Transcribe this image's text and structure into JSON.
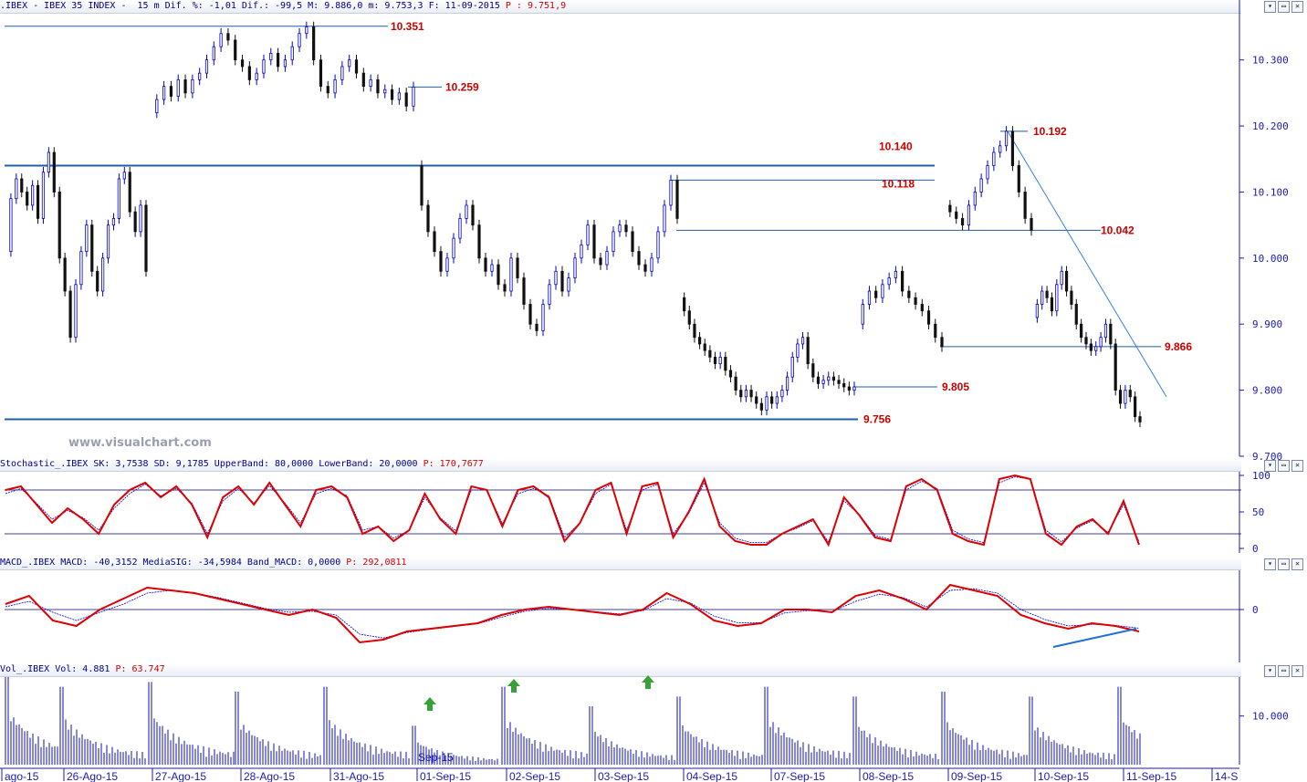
{
  "headers": {
    "main": {
      "prefix": ".IBEX - IBEX 35 INDEX -  15 m Dif. %: -1,01 Dif.: -99,5 M: 9.886,0 m: 9.753,3 F: 11-09-2015 ",
      "red": "P : 9.751,9"
    },
    "stoch": {
      "prefix": "Stochastic_.IBEX SK: 3,7538 SD: 9,1785 UpperBand: 80,0000 LowerBand: 20,0000 ",
      "red": "P: 170,7677"
    },
    "macd": {
      "prefix": "MACD_.IBEX MACD: -40,3152 MediaSIG: -34,5984 Band_MACD: 0,0000 ",
      "red": "P: 292,0811"
    },
    "vol": {
      "prefix": "Vol_.IBEX Vol: 4.881 ",
      "red": "P: 63.747"
    }
  },
  "window_buttons": [
    "▾",
    "▭",
    "✕"
  ],
  "watermark": "www.visualchart.com",
  "colors": {
    "up": "#0000cc",
    "down": "#111111",
    "axis": "#1a1ab4",
    "level": "#1f5fa8",
    "label": "#cc0000",
    "stoch": "#dd0000",
    "signal": "#0000cc",
    "arrow": "#3aa03a"
  },
  "chart_data": [
    {
      "type": "candlestick",
      "panel": "price",
      "timeframe": "15 m",
      "ylim": [
        9700,
        10370
      ],
      "y_ticks": [
        "10.300",
        "10.200",
        "10.100",
        "10.000",
        "9.900",
        "9.800",
        "9.700"
      ],
      "x_ticks": [
        "ago-15",
        "26-Ago-15",
        "27-Ago-15",
        "28-Ago-15",
        "31-Ago-15",
        "01-Sep-15",
        "02-Sep-15",
        "03-Sep-15",
        "04-Sep-15",
        "07-Sep-15",
        "08-Sep-15",
        "09-Sep-15",
        "10-Sep-15",
        "11-Sep-15",
        "14-S"
      ],
      "x_axis_overlay_label": "Sep-15",
      "levels": [
        {
          "value": 10351,
          "label": "10.351"
        },
        {
          "value": 10259,
          "label": "10.259"
        },
        {
          "value": 10192,
          "label": "10.192"
        },
        {
          "value": 10140,
          "label": "10.140"
        },
        {
          "value": 10118,
          "label": "10.118"
        },
        {
          "value": 10042,
          "label": "10.042"
        },
        {
          "value": 9866,
          "label": "9.866"
        },
        {
          "value": 9805,
          "label": "9.805"
        },
        {
          "value": 9756,
          "label": "9.756"
        }
      ],
      "trendline": {
        "from": 10192,
        "to": 9790
      },
      "series": [
        {
          "segment": "25-Ago",
          "values": [
            10010,
            10090,
            10120,
            10100,
            10080,
            10110,
            10060,
            10130,
            10160,
            10100,
            10000,
            9950,
            9880,
            9960,
            10010,
            10050,
            9980,
            9950,
            10000,
            10050,
            10060,
            10120,
            10130,
            10070,
            10040,
            10080,
            9980
          ]
        },
        {
          "segment": "27/28-Ago",
          "values": [
            10220,
            10240,
            10260,
            10245,
            10270,
            10250,
            10270,
            10280,
            10300,
            10320,
            10340,
            10330,
            10300,
            10290,
            10270,
            10280,
            10300,
            10310,
            10290,
            10300,
            10320,
            10340,
            10350,
            10300,
            10260,
            10250,
            10270,
            10290,
            10300,
            10280,
            10260,
            10270,
            10250,
            10255,
            10240,
            10250,
            10230,
            10259
          ]
        },
        {
          "segment": "01/03-Sep",
          "values": [
            10140,
            10080,
            10040,
            10010,
            9980,
            10000,
            10030,
            10060,
            10080,
            10050,
            10000,
            9980,
            9990,
            9960,
            9950,
            10000,
            9970,
            9930,
            9900,
            9890,
            9930,
            9960,
            9980,
            9950,
            9970,
            10000,
            10020,
            10050,
            10000,
            9990,
            10010,
            10040,
            10050,
            10040,
            10010,
            9990,
            9980,
            10000,
            10040,
            10080,
            10118,
            10060
          ]
        },
        {
          "segment": "04/07-Sep",
          "values": [
            9940,
            9920,
            9900,
            9880,
            9870,
            9860,
            9850,
            9840,
            9850,
            9830,
            9820,
            9800,
            9790,
            9800,
            9790,
            9780,
            9770,
            9790,
            9780,
            9790,
            9800,
            9820,
            9850,
            9870,
            9880,
            9840,
            9820,
            9810,
            9815,
            9820,
            9815,
            9810,
            9805,
            9800,
            9805
          ]
        },
        {
          "segment": "08-Sep",
          "values": [
            9900,
            9930,
            9950,
            9940,
            9960,
            9970,
            9980,
            9950,
            9940,
            9930,
            9920,
            9900,
            9880,
            9866
          ]
        },
        {
          "segment": "09-Sep",
          "values": [
            10080,
            10070,
            10060,
            10050,
            10080,
            10100,
            10120,
            10140,
            10160,
            10170,
            10192,
            10140,
            10100,
            10060,
            10042
          ]
        },
        {
          "segment": "10/11-Sep",
          "values": [
            9910,
            9930,
            9950,
            9940,
            9920,
            9960,
            9980,
            9950,
            9930,
            9900,
            9880,
            9870,
            9860,
            9866,
            9880,
            9900,
            9870,
            9800,
            9780,
            9800,
            9790,
            9760,
            9752
          ]
        }
      ]
    },
    {
      "type": "line",
      "panel": "stochastic",
      "ylim": [
        0,
        100
      ],
      "y_ticks": [
        "100",
        "50",
        "0"
      ],
      "bands": [
        20,
        80
      ],
      "series": [
        {
          "name": "SK",
          "values": [
            80,
            85,
            60,
            35,
            55,
            40,
            20,
            60,
            80,
            90,
            70,
            85,
            60,
            15,
            70,
            85,
            60,
            90,
            60,
            30,
            80,
            85,
            70,
            20,
            30,
            10,
            25,
            75,
            40,
            20,
            85,
            80,
            30,
            80,
            85,
            70,
            10,
            35,
            80,
            90,
            20,
            85,
            90,
            15,
            50,
            95,
            30,
            10,
            5,
            5,
            20,
            30,
            40,
            5,
            70,
            45,
            15,
            10,
            85,
            95,
            80,
            20,
            10,
            5,
            95,
            100,
            95,
            20,
            5,
            30,
            40,
            20,
            65,
            5
          ]
        },
        {
          "name": "SD",
          "values": [
            75,
            82,
            62,
            40,
            52,
            42,
            25,
            55,
            75,
            88,
            72,
            82,
            62,
            20,
            65,
            82,
            62,
            86,
            62,
            35,
            75,
            82,
            72,
            25,
            30,
            14,
            25,
            70,
            42,
            24,
            80,
            80,
            34,
            75,
            82,
            72,
            15,
            35,
            75,
            88,
            25,
            80,
            88,
            20,
            48,
            90,
            35,
            14,
            8,
            8,
            20,
            28,
            38,
            9,
            65,
            46,
            18,
            12,
            80,
            92,
            82,
            25,
            13,
            8,
            90,
            98,
            95,
            25,
            9,
            28,
            38,
            22,
            60,
            9
          ]
        }
      ]
    },
    {
      "type": "line",
      "panel": "macd",
      "ylim": [
        -80,
        60
      ],
      "y_ticks": [
        "0"
      ],
      "series": [
        {
          "name": "MACD",
          "values": [
            10,
            25,
            -20,
            -30,
            0,
            20,
            40,
            35,
            30,
            20,
            10,
            0,
            -10,
            0,
            -15,
            -60,
            -55,
            -40,
            -35,
            -30,
            -25,
            -10,
            0,
            5,
            0,
            -5,
            -10,
            0,
            30,
            10,
            -20,
            -30,
            -25,
            0,
            0,
            -5,
            25,
            35,
            20,
            0,
            45,
            35,
            25,
            -10,
            -25,
            -35,
            -25,
            -30,
            -40
          ]
        },
        {
          "name": "MediaSIG",
          "values": [
            5,
            15,
            -5,
            -20,
            -5,
            10,
            30,
            35,
            30,
            22,
            12,
            2,
            -5,
            -3,
            -10,
            -45,
            -52,
            -42,
            -36,
            -31,
            -26,
            -14,
            -3,
            2,
            0,
            -4,
            -8,
            -2,
            20,
            12,
            -12,
            -24,
            -24,
            -6,
            -2,
            -4,
            15,
            28,
            22,
            5,
            35,
            38,
            30,
            0,
            -18,
            -30,
            -27,
            -29,
            -34
          ]
        }
      ]
    },
    {
      "type": "bar",
      "panel": "volume",
      "y_ticks": [
        "10.000"
      ],
      "ylim": [
        0,
        18000
      ],
      "session_volumes": [
        18000,
        16000,
        17000,
        15000,
        16000,
        8000,
        16000,
        12000,
        14000,
        16000,
        14000,
        15000,
        14000,
        16000
      ],
      "markers": [
        {
          "type": "arrow-up",
          "session": "01-Sep-15"
        },
        {
          "type": "arrow-up",
          "session": "02-Sep-15"
        },
        {
          "type": "arrow-up",
          "session": "03-Sep-15"
        }
      ]
    }
  ]
}
